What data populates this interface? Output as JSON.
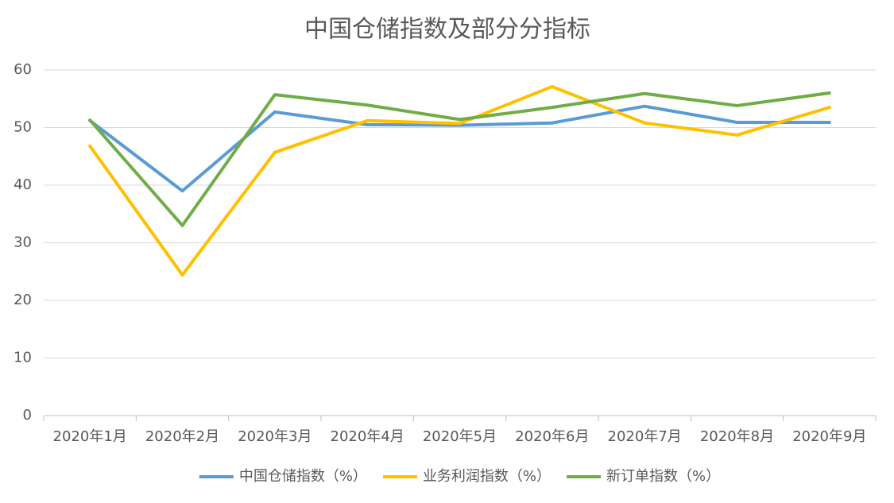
{
  "chart_data": {
    "type": "line",
    "title": "中国仓储指数及部分分指标",
    "categories": [
      "2020年1月",
      "2020年2月",
      "2020年3月",
      "2020年4月",
      "2020年5月",
      "2020年6月",
      "2020年7月",
      "2020年8月",
      "2020年9月"
    ],
    "series": [
      {
        "name": "中国仓储指数（%）",
        "color": "#5b9bd5",
        "values": [
          51.2,
          39.0,
          52.7,
          50.5,
          50.4,
          50.8,
          53.7,
          50.9,
          50.9
        ]
      },
      {
        "name": "业务利润指数（%）",
        "color": "#ffc000",
        "values": [
          46.8,
          24.4,
          45.7,
          51.2,
          50.7,
          57.1,
          50.8,
          48.7,
          53.5
        ]
      },
      {
        "name": "新订单指数（%）",
        "color": "#70ad47",
        "values": [
          51.3,
          33.0,
          55.7,
          53.9,
          51.4,
          53.5,
          55.9,
          53.8,
          56.0
        ]
      }
    ],
    "ylim": [
      0,
      60
    ],
    "yticks": [
      0,
      10,
      20,
      30,
      40,
      50,
      60
    ],
    "grid": true,
    "legend": "bottom"
  }
}
